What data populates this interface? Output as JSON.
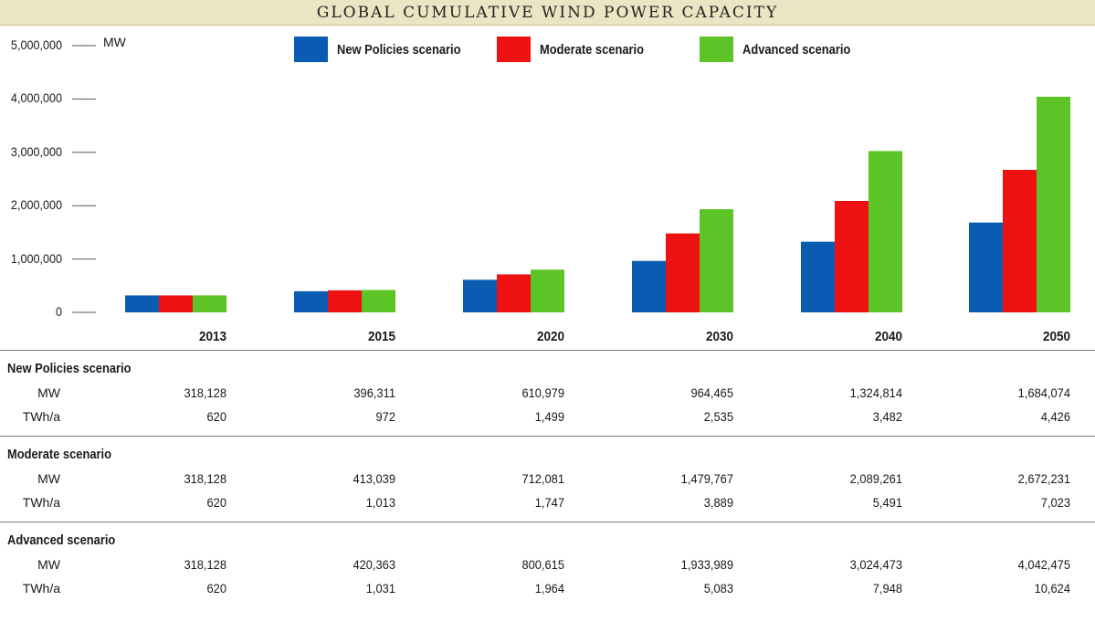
{
  "header": {
    "title": "GLOBAL CUMULATIVE WIND POWER CAPACITY"
  },
  "chart_data": {
    "type": "bar",
    "title": "GLOBAL CUMULATIVE WIND POWER CAPACITY",
    "ylabel": "MW",
    "ylim": [
      0,
      5000000
    ],
    "yticks": [
      "0",
      "1,000,000",
      "2,000,000",
      "3,000,000",
      "4,000,000",
      "5,000,000"
    ],
    "categories": [
      "2013",
      "2015",
      "2020",
      "2030",
      "2040",
      "2050"
    ],
    "legend_position": "top",
    "series": [
      {
        "name": "New Policies scenario",
        "color": "#0a5cb3",
        "values": [
          318128,
          396311,
          610979,
          964465,
          1324814,
          1684074
        ]
      },
      {
        "name": "Moderate scenario",
        "color": "#ee1111",
        "values": [
          318128,
          413039,
          712081,
          1479767,
          2089261,
          2672231
        ]
      },
      {
        "name": "Advanced scenario",
        "color": "#5cc427",
        "values": [
          318128,
          420363,
          800615,
          1933989,
          3024473,
          4042475
        ]
      }
    ]
  },
  "table": {
    "sections": [
      {
        "name": "New Policies scenario",
        "rows": [
          {
            "label": "MW",
            "values": [
              "318,128",
              "396,311",
              "610,979",
              "964,465",
              "1,324,814",
              "1,684,074"
            ]
          },
          {
            "label": "TWh/a",
            "values": [
              "620",
              "972",
              "1,499",
              "2,535",
              "3,482",
              "4,426"
            ]
          }
        ]
      },
      {
        "name": "Moderate scenario",
        "rows": [
          {
            "label": "MW",
            "values": [
              "318,128",
              "413,039",
              "712,081",
              "1,479,767",
              "2,089,261",
              "2,672,231"
            ]
          },
          {
            "label": "TWh/a",
            "values": [
              "620",
              "1,013",
              "1,747",
              "3,889",
              "5,491",
              "7,023"
            ]
          }
        ]
      },
      {
        "name": "Advanced scenario",
        "rows": [
          {
            "label": "MW",
            "values": [
              "318,128",
              "420,363",
              "800,615",
              "1,933,989",
              "3,024,473",
              "4,042,475"
            ]
          },
          {
            "label": "TWh/a",
            "values": [
              "620",
              "1,031",
              "1,964",
              "5,083",
              "7,948",
              "10,624"
            ]
          }
        ]
      }
    ]
  }
}
